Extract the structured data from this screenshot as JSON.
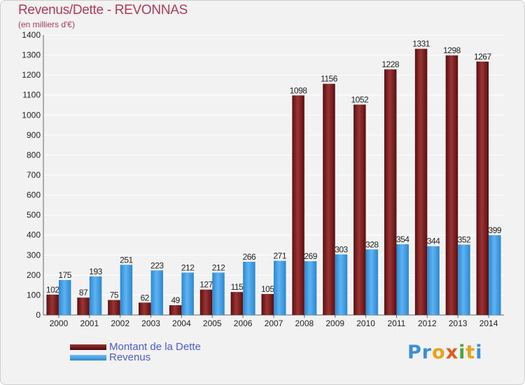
{
  "chart_data": {
    "type": "bar",
    "title": "Revenus/Dette - REVONNAS",
    "subtitle": "(en milliers d'€)",
    "categories": [
      "2000",
      "2001",
      "2002",
      "2003",
      "2004",
      "2005",
      "2006",
      "2007",
      "2008",
      "2009",
      "2010",
      "2011",
      "2012",
      "2013",
      "2014"
    ],
    "series": [
      {
        "name": "Montant de la Dette",
        "color": "#7a1a1a",
        "values": [
          102,
          87,
          75,
          62,
          49,
          127,
          115,
          105,
          1098,
          1156,
          1052,
          1228,
          1331,
          1298,
          1267
        ]
      },
      {
        "name": "Revenus",
        "color": "#3d9be0",
        "values": [
          175,
          193,
          251,
          223,
          212,
          212,
          266,
          271,
          269,
          303,
          328,
          354,
          344,
          352,
          399
        ]
      }
    ],
    "ylim": [
      0,
      1400
    ],
    "yticks": [
      0,
      100,
      200,
      300,
      400,
      500,
      600,
      700,
      800,
      900,
      1000,
      1100,
      1200,
      1300,
      1400
    ],
    "grid": true,
    "legend": "bottom-left"
  },
  "logo": {
    "letters": [
      "P",
      "r",
      "o",
      "x",
      "i",
      "t",
      "i"
    ],
    "colors": [
      "#3d8fd6",
      "#3d8fd6",
      "#e8a21a",
      "#e05a1a",
      "#4aa83a",
      "#e8a21a",
      "#3d8fd6"
    ]
  }
}
